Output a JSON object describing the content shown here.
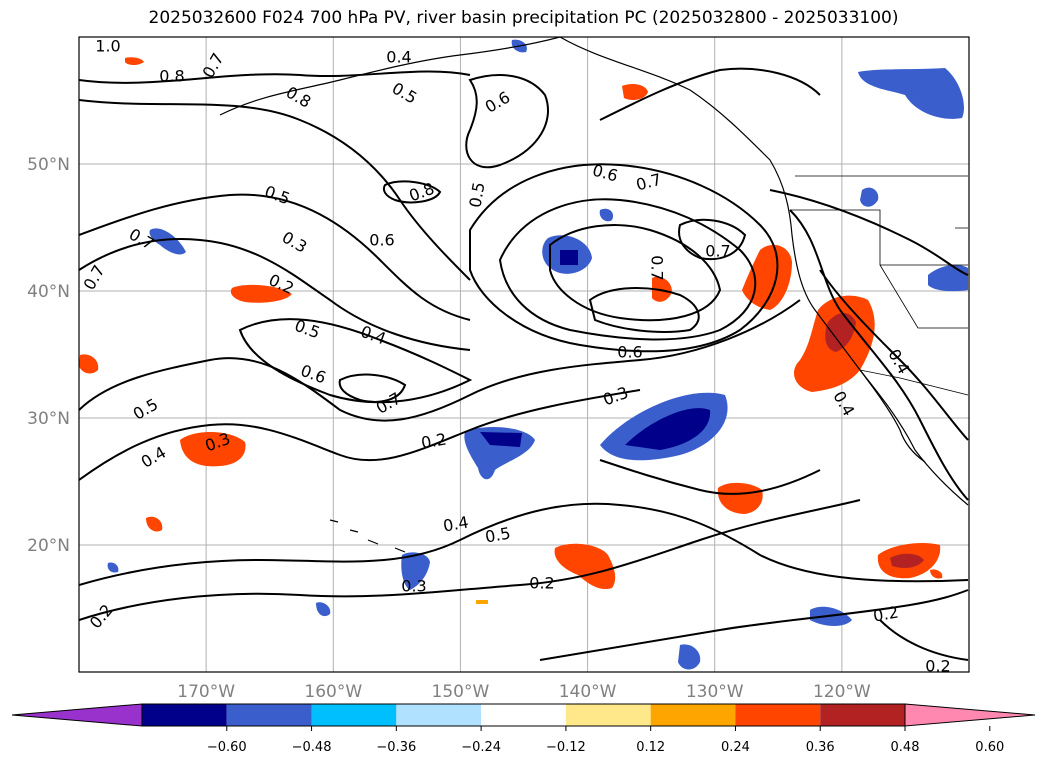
{
  "title": "2025032600 F024 700 hPa PV, river basin precipitation PC (2025032800 - 2025033100)",
  "map": {
    "lon_range": [
      -180,
      -110
    ],
    "lat_range": [
      10,
      60
    ],
    "lon_ticks": [
      "170°W",
      "160°W",
      "150°W",
      "140°W",
      "130°W",
      "120°W"
    ],
    "lat_ticks": [
      "50°N",
      "40°N",
      "30°N",
      "20°N"
    ],
    "grid": true,
    "contour_labels": [
      "1.0",
      "0.8",
      "0.7",
      "0.5",
      "0.4",
      "0.6",
      "0.8",
      "0.6",
      "0.7",
      "0.5",
      "0.5",
      "0.3",
      "0.6",
      "0.2",
      "0.7",
      "0.7",
      "0.8",
      "0.5",
      "0.4",
      "0.6",
      "0.7",
      "0.5",
      "0.4",
      "0.3",
      "0.3",
      "0.2",
      "0.4",
      "0.5",
      "0.2",
      "0.3",
      "0.2",
      "0.2",
      "0.2",
      "0.4",
      "0.4",
      "0.6",
      "0.7",
      "0.7"
    ]
  },
  "colorbar": {
    "colors": [
      "#9932cc",
      "#00008b",
      "#3a5fcd",
      "#00bfff",
      "#b0e2ff",
      "#ffffff",
      "#ffe88a",
      "#ffa500",
      "#ff4500",
      "#b22222",
      "#ff88b0"
    ],
    "tick_labels": [
      "−0.60",
      "−0.48",
      "−0.36",
      "−0.24",
      "−0.12",
      "0.12",
      "0.24",
      "0.36",
      "0.48",
      "0.60"
    ]
  }
}
